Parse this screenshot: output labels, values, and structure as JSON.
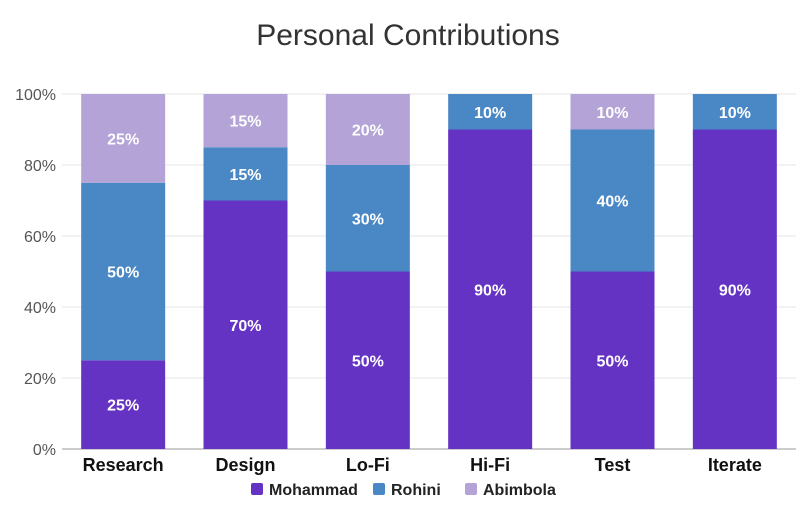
{
  "chart_data": {
    "type": "bar",
    "stacked": true,
    "title": "Personal Contributions",
    "xlabel": "",
    "ylabel": "",
    "ylim": [
      0,
      100
    ],
    "yticks": [
      "0%",
      "20%",
      "40%",
      "60%",
      "80%",
      "100%"
    ],
    "categories": [
      "Research",
      "Design",
      "Lo-Fi",
      "Hi-Fi",
      "Test",
      "Iterate"
    ],
    "series": [
      {
        "name": "Mohammad",
        "color": "#6433c4",
        "values": [
          25,
          70,
          50,
          90,
          50,
          90
        ]
      },
      {
        "name": "Rohini",
        "color": "#4a88c5",
        "values": [
          50,
          15,
          30,
          10,
          40,
          10
        ]
      },
      {
        "name": "Abimbola",
        "color": "#b3a3d6",
        "values": [
          25,
          15,
          20,
          0,
          10,
          0
        ]
      }
    ],
    "value_suffix": "%",
    "grid": true,
    "legend_position": "bottom"
  }
}
